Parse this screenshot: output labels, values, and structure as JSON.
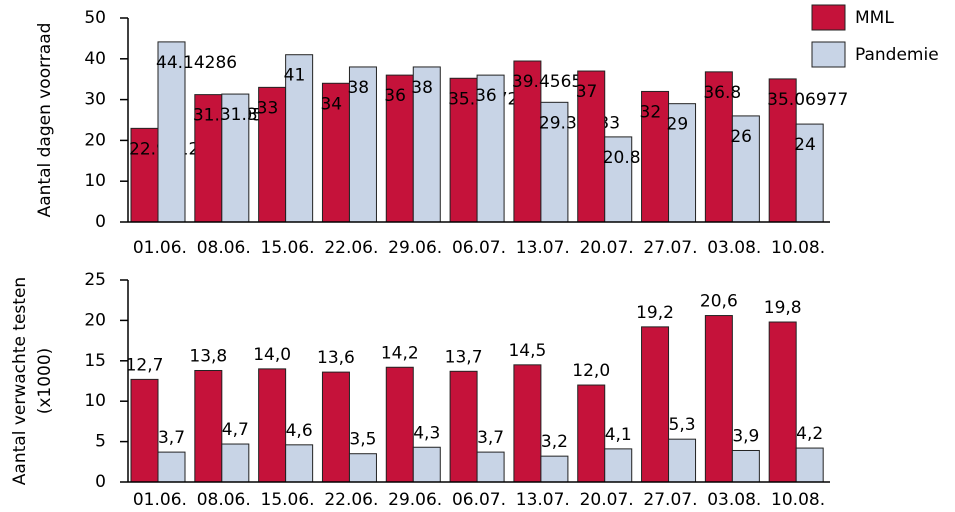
{
  "chart_data": [
    {
      "type": "bar",
      "ylabel": "Aantal dagen voorraad",
      "categories": [
        "01.06.",
        "08.06.",
        "15.06.",
        "22.06.",
        "29.06.",
        "06.07.",
        "13.07.",
        "20.07.",
        "27.07.",
        "03.08.",
        "10.08."
      ],
      "series": [
        {
          "name": "MML",
          "color": "#c5123a",
          "values": [
            22.95122,
            31.21951,
            33,
            34,
            36,
            35.22727,
            39.45652,
            37,
            32,
            36.8,
            35.06977
          ]
        },
        {
          "name": "Pandemie",
          "color": "#c8d4e6",
          "values": [
            44.14286,
            31.35714,
            41,
            38,
            38,
            36,
            29.33333,
            20.85714,
            29,
            26,
            24
          ]
        }
      ],
      "ylim": [
        0,
        50
      ],
      "yticks": [
        0,
        10,
        20,
        30,
        40,
        50
      ],
      "legend": "top-right",
      "label_style": "inside-left"
    },
    {
      "type": "bar",
      "ylabel": [
        "Aantal verwachte testen",
        "(x1000)"
      ],
      "categories": [
        "01.06.",
        "08.06.",
        "15.06.",
        "22.06.",
        "29.06.",
        "06.07.",
        "13.07.",
        "20.07.",
        "27.07.",
        "03.08.",
        "10.08."
      ],
      "series": [
        {
          "color": "#c5123a",
          "values": [
            12.7,
            13.8,
            14.0,
            13.6,
            14.2,
            13.7,
            14.5,
            12.0,
            19.2,
            20.6,
            19.8
          ],
          "value_labels": [
            "12,7",
            "13,8",
            "14,0",
            "13,6",
            "14,2",
            "13,7",
            "14,5",
            "12,0",
            "19,2",
            "20,6",
            "19,8"
          ]
        },
        {
          "color": "#c8d4e6",
          "values": [
            3.7,
            4.7,
            4.6,
            3.5,
            4.3,
            3.7,
            3.2,
            4.1,
            5.3,
            3.9,
            4.2
          ],
          "value_labels": [
            "3,7",
            "4,7",
            "4,6",
            "3,5",
            "4,3",
            "3,7",
            "3,2",
            "4,1",
            "5,3",
            "3,9",
            "4,2"
          ]
        }
      ],
      "ylim": [
        0,
        25
      ],
      "yticks": [
        0,
        5,
        10,
        15,
        20,
        25
      ],
      "label_style": "above"
    }
  ]
}
